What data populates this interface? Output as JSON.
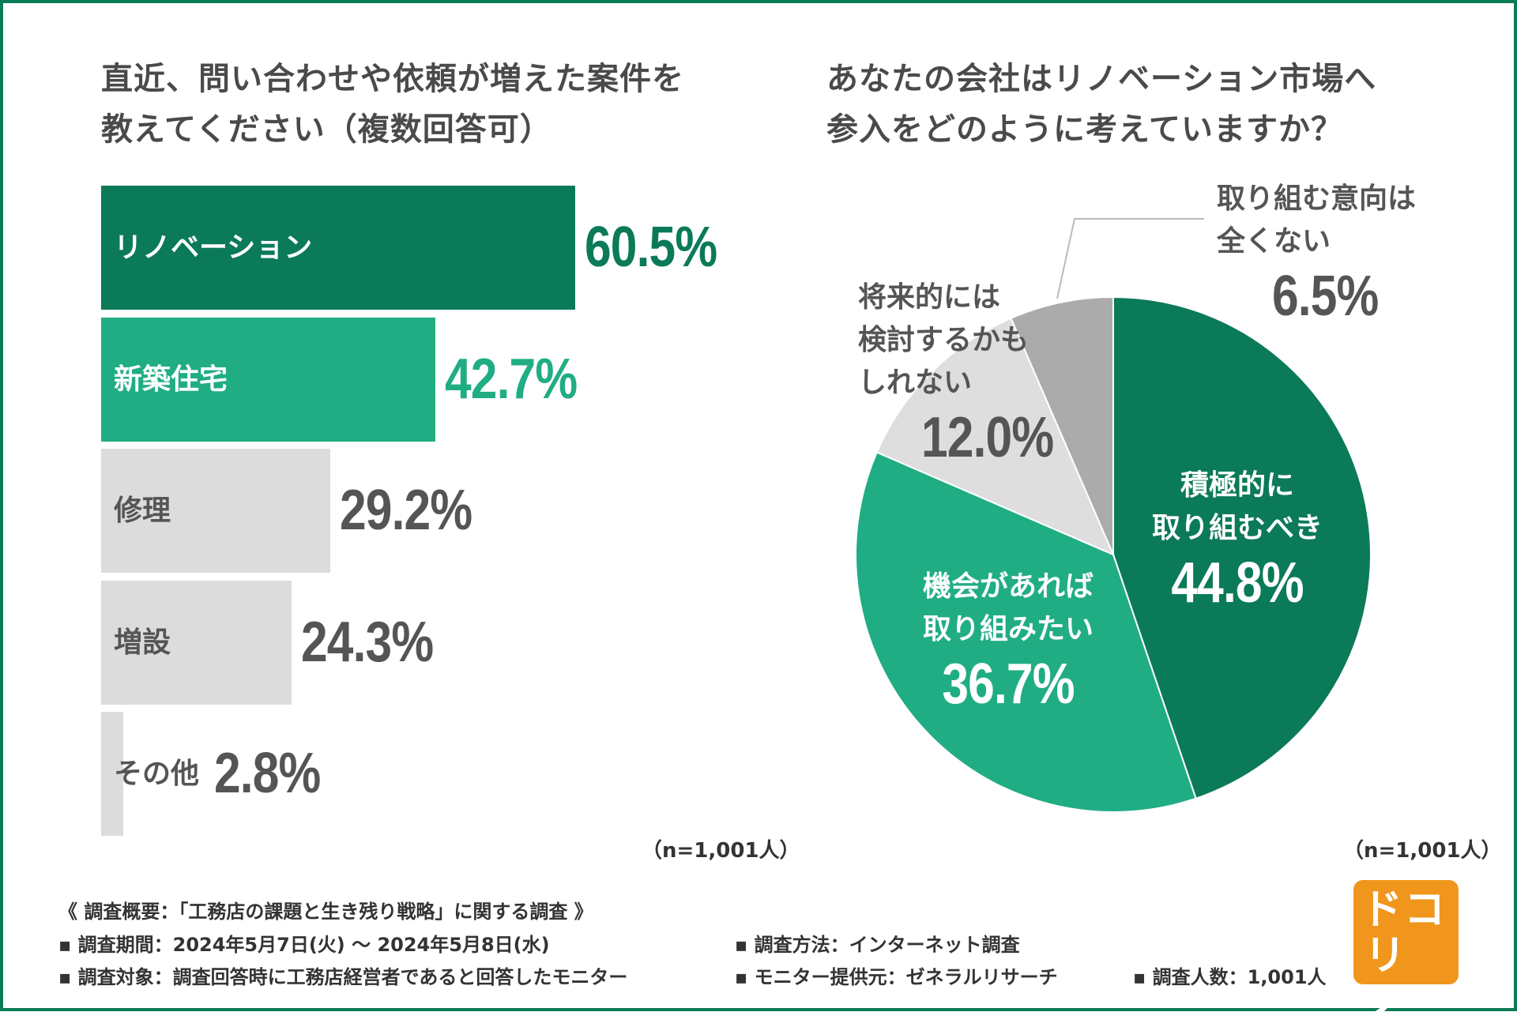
{
  "bar_chart": {
    "title_lines": [
      "直近、問い合わせや依頼が増えた案件を",
      "教えてください（複数回答可）"
    ],
    "sample_note": "（n=1,001人）"
  },
  "pie_chart": {
    "title_lines": [
      "あなたの会社はリノベーション市場へ",
      "参入をどのように考えていますか？"
    ],
    "sample_note": "（n=1,001人）"
  },
  "chart_data": [
    {
      "type": "bar",
      "orientation": "horizontal",
      "title": "直近、問い合わせや依頼が増えた案件を教えてください（複数回答可）",
      "categories": [
        "リノベーション",
        "新築住宅",
        "修理",
        "増設",
        "その他"
      ],
      "values": [
        60.5,
        42.7,
        29.2,
        24.3,
        2.8
      ],
      "value_labels": [
        "60.5%",
        "42.7%",
        "29.2%",
        "24.3%",
        "2.8%"
      ],
      "unit": "%",
      "xlim": [
        0,
        100
      ],
      "grid": false,
      "colors": [
        "#0b7a58",
        "#21ad84",
        "#dcdcdc",
        "#dcdcdc",
        "#dcdcdc"
      ],
      "value_colors": [
        "#0b7a58",
        "#21ad84",
        "#555555",
        "#555555",
        "#555555"
      ],
      "label_colors": [
        "#ffffff",
        "#ffffff",
        "#555555",
        "#555555",
        "#555555"
      ]
    },
    {
      "type": "pie",
      "title": "あなたの会社はリノベーション市場へ参入をどのように考えていますか？",
      "categories": [
        "積極的に取り組むべき",
        "機会があれば取り組みたい",
        "将来的には検討するかもしれない",
        "取り組む意向は全くない"
      ],
      "values": [
        44.8,
        36.7,
        12.0,
        6.5
      ],
      "value_labels": [
        "44.8%",
        "36.7%",
        "12.0%",
        "6.5%"
      ],
      "label_lines": [
        [
          "積極的に",
          "取り組むべき"
        ],
        [
          "機会があれば",
          "取り組みたい"
        ],
        [
          "将来的には",
          "検討するかも",
          "しれない"
        ],
        [
          "取り組む意向は",
          "全くない"
        ]
      ],
      "colors": [
        "#0b7a58",
        "#21ad84",
        "#dedede",
        "#ababab"
      ],
      "label_colors": [
        "#ffffff",
        "#ffffff",
        "#555555",
        "#555555"
      ],
      "start": "12 o'clock",
      "direction": "clockwise"
    }
  ],
  "footer": {
    "overview": "《 調査概要：「工務店の課題と生き残り戦略」に関する調査 》",
    "period": "▪ 調査期間：2024年5月7日(火) 〜 2024年5月8日(水)",
    "method": "▪ 調査方法：インターネット調査",
    "target": "▪ 調査対象：調査回答時に工務店経営者であると回答したモニター",
    "provider": "▪ モニター提供元：ゼネラルリサーチ",
    "count": "▪ 調査人数：1,001人"
  },
  "logo": {
    "line1": "ドコ",
    "line2": "リノ",
    "color": "#f0961c"
  }
}
